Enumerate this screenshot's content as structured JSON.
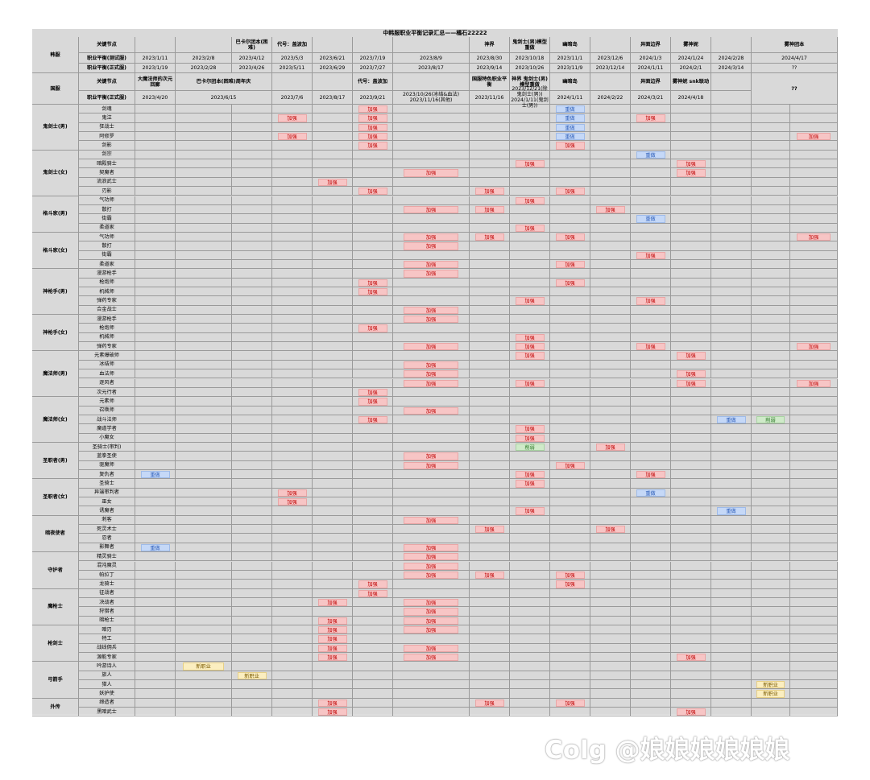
{
  "sheet_title": "中韩服职业平衡记录汇总——橘石22222",
  "kr": {
    "region": "韩服",
    "label_event": "关键节点",
    "label_test": "职业平衡(测试服)",
    "label_live": "职业平衡(正式服)",
    "events": [
      "",
      "",
      "巴卡尔团本(困难)",
      "代号：盖波加",
      "",
      "",
      "",
      "",
      "神界",
      "鬼剑士(男)模型重做",
      "幽暗岛",
      "",
      "异面边界",
      "雾神妮",
      "",
      "雾神团本"
    ],
    "test": [
      "2023/1/11",
      "2023/2/8",
      "2023/4/12",
      "2023/5/3",
      "2023/6/21",
      "2023/7/19",
      "2023/8/9",
      "",
      "2023/8/30",
      "2023/10/18",
      "2023/11/1",
      "2023/12/6",
      "2024/1/3",
      "2024/1/24",
      "2024/2/28",
      "2024/4/17"
    ],
    "live": [
      "2023/1/19",
      "2023/2/28",
      "2023/4/26",
      "2023/5/11",
      "2023/6/29",
      "2023/7/27",
      "2023/8/17",
      "",
      "2023/9/14",
      "2023/10/26",
      "2023/11/9",
      "2023/12/14",
      "2024/1/11",
      "2024/2/1",
      "2024/3/14",
      "??"
    ]
  },
  "cn": {
    "region": "国服",
    "label_event": "关键节点",
    "label_live": "职业平衡(正式服)",
    "events": [
      "大魔法师的次元回廊",
      "巴卡尔团本(困难)周年庆",
      "",
      "",
      "代号：盖波加",
      "",
      "国服特色职业平衡",
      "神界\n鬼剑士(男)模型重做",
      "幽暗岛",
      "",
      "异面边界",
      "雾神妮\nsnk联动",
      "",
      ""
    ],
    "live": [
      "2023/4/20",
      "2023/6/15",
      "2023/7/6",
      "2023/8/17",
      "2023/9/21",
      "2023/10/26(冰结&血法)\n2023/11/16(其他)",
      "2023/11/16",
      "2023/12/21(除鬼剑士(男))\n2024/1/11(鬼剑士(男))",
      "2024/1/11",
      "2024/2/22",
      "2024/3/21",
      "2024/4/18",
      "",
      "??"
    ]
  },
  "tag_labels": {
    "buff": "加强",
    "rework": "重做",
    "nerf": "削弱",
    "new": "新职业"
  },
  "colors": {
    "buff_bg": "#f7c5c5",
    "buff_text": "#c00000",
    "rework_bg": "#c5d8f7",
    "nerf_bg": "#cfeac9",
    "new_bg": "#fbeec0",
    "sheet_bg": "#d9d9d9"
  },
  "groups": [
    {
      "name": "鬼剑士(男)",
      "classes": [
        {
          "name": "剑魂",
          "marks": [
            [
              5,
              "buff"
            ],
            [
              9,
              "rework"
            ]
          ]
        },
        {
          "name": "鬼泣",
          "marks": [
            [
              3,
              "buff"
            ],
            [
              5,
              "buff"
            ],
            [
              9,
              "rework"
            ],
            [
              11,
              "buff"
            ]
          ]
        },
        {
          "name": "狂战士",
          "marks": [
            [
              5,
              "buff"
            ],
            [
              9,
              "rework"
            ]
          ]
        },
        {
          "name": "阿修罗",
          "marks": [
            [
              3,
              "buff"
            ],
            [
              5,
              "buff"
            ],
            [
              9,
              "rework"
            ],
            [
              15,
              "buff"
            ]
          ]
        },
        {
          "name": "剑影",
          "marks": [
            [
              5,
              "buff"
            ],
            [
              9,
              "buff"
            ]
          ]
        }
      ]
    },
    {
      "name": "鬼剑士(女)",
      "classes": [
        {
          "name": "剑宗",
          "marks": [
            [
              11,
              "rework"
            ]
          ]
        },
        {
          "name": "暗殿骑士",
          "marks": [
            [
              8,
              "buff"
            ],
            [
              12,
              "buff"
            ]
          ]
        },
        {
          "name": "契魔者",
          "marks": [
            [
              6,
              "buff"
            ],
            [
              12,
              "buff"
            ]
          ]
        },
        {
          "name": "流浪武士",
          "marks": [
            [
              4,
              "buff"
            ]
          ]
        },
        {
          "name": "刃影",
          "marks": [
            [
              5,
              "buff"
            ],
            [
              7,
              "buff"
            ],
            [
              9,
              "buff"
            ]
          ]
        }
      ]
    },
    {
      "name": "格斗家(男)",
      "classes": [
        {
          "name": "气功师",
          "marks": [
            [
              8,
              "buff"
            ]
          ]
        },
        {
          "name": "散打",
          "marks": [
            [
              6,
              "buff"
            ],
            [
              7,
              "buff"
            ],
            [
              10,
              "buff"
            ]
          ]
        },
        {
          "name": "街霸",
          "marks": [
            [
              11,
              "rework"
            ]
          ]
        },
        {
          "name": "柔道家",
          "marks": [
            [
              8,
              "buff"
            ]
          ]
        }
      ]
    },
    {
      "name": "格斗家(女)",
      "classes": [
        {
          "name": "气功师",
          "marks": [
            [
              6,
              "buff"
            ],
            [
              7,
              "buff"
            ],
            [
              9,
              "buff"
            ],
            [
              15,
              "buff"
            ]
          ]
        },
        {
          "name": "散打",
          "marks": [
            [
              6,
              "buff"
            ]
          ]
        },
        {
          "name": "街霸",
          "marks": [
            [
              11,
              "buff"
            ]
          ]
        },
        {
          "name": "柔道家",
          "marks": [
            [
              6,
              "buff"
            ],
            [
              9,
              "buff"
            ]
          ]
        }
      ]
    },
    {
      "name": "神枪手(男)",
      "classes": [
        {
          "name": "漫游枪手",
          "marks": [
            [
              6,
              "buff"
            ]
          ]
        },
        {
          "name": "枪炮师",
          "marks": [
            [
              5,
              "buff"
            ],
            [
              9,
              "buff"
            ]
          ]
        },
        {
          "name": "机械师",
          "marks": [
            [
              5,
              "buff"
            ]
          ]
        },
        {
          "name": "弹药专家",
          "marks": [
            [
              8,
              "buff"
            ],
            [
              11,
              "buff"
            ]
          ]
        },
        {
          "name": "合金战士",
          "marks": [
            [
              6,
              "buff"
            ]
          ]
        }
      ]
    },
    {
      "name": "神枪手(女)",
      "classes": [
        {
          "name": "漫游枪手",
          "marks": [
            [
              6,
              "buff"
            ]
          ]
        },
        {
          "name": "枪炮师",
          "marks": [
            [
              5,
              "buff"
            ]
          ]
        },
        {
          "name": "机械师",
          "marks": [
            [
              8,
              "buff"
            ]
          ]
        },
        {
          "name": "弹药专家",
          "marks": [
            [
              6,
              "buff"
            ],
            [
              8,
              "buff"
            ],
            [
              11,
              "buff"
            ],
            [
              15,
              "buff"
            ]
          ]
        }
      ]
    },
    {
      "name": "魔法师(男)",
      "classes": [
        {
          "name": "元素爆破师",
          "marks": [
            [
              8,
              "buff"
            ],
            [
              12,
              "buff"
            ]
          ]
        },
        {
          "name": "冰结师",
          "marks": [
            [
              6,
              "buff"
            ]
          ]
        },
        {
          "name": "血法师",
          "marks": [
            [
              6,
              "buff"
            ],
            [
              12,
              "buff"
            ]
          ]
        },
        {
          "name": "逐风者",
          "marks": [
            [
              6,
              "buff"
            ],
            [
              8,
              "buff"
            ],
            [
              12,
              "buff"
            ],
            [
              15,
              "buff"
            ]
          ]
        },
        {
          "name": "次元行者",
          "marks": [
            [
              5,
              "buff"
            ]
          ]
        }
      ]
    },
    {
      "name": "魔法师(女)",
      "classes": [
        {
          "name": "元素师",
          "marks": [
            [
              5,
              "buff"
            ]
          ]
        },
        {
          "name": "召唤师",
          "marks": [
            [
              6,
              "buff"
            ]
          ]
        },
        {
          "name": "战斗法师",
          "marks": [
            [
              5,
              "buff"
            ],
            [
              13,
              "rework"
            ],
            [
              14,
              "nerf"
            ]
          ]
        },
        {
          "name": "魔道学者",
          "marks": [
            [
              8,
              "buff"
            ]
          ]
        },
        {
          "name": "小魔女",
          "marks": [
            [
              8,
              "buff"
            ]
          ]
        }
      ]
    },
    {
      "name": "圣职者(男)",
      "classes": [
        {
          "name": "圣骑士(审判)",
          "marks": [
            [
              8,
              "nerf"
            ],
            [
              10,
              "buff"
            ]
          ]
        },
        {
          "name": "蓝拳圣使",
          "marks": [
            [
              6,
              "buff"
            ]
          ]
        },
        {
          "name": "驱魔师",
          "marks": [
            [
              6,
              "buff"
            ],
            [
              9,
              "buff"
            ]
          ]
        },
        {
          "name": "复仇者",
          "marks": [
            [
              0,
              "rework"
            ],
            [
              8,
              "buff"
            ],
            [
              11,
              "buff"
            ]
          ]
        }
      ]
    },
    {
      "name": "圣职者(女)",
      "classes": [
        {
          "name": "圣骑士",
          "marks": [
            [
              8,
              "buff"
            ]
          ]
        },
        {
          "name": "异端审判者",
          "marks": [
            [
              3,
              "buff"
            ],
            [
              11,
              "rework"
            ]
          ]
        },
        {
          "name": "巫女",
          "marks": [
            [
              3,
              "buff"
            ]
          ]
        },
        {
          "name": "诱魔者",
          "marks": [
            [
              8,
              "buff"
            ],
            [
              13,
              "rework"
            ]
          ]
        }
      ]
    },
    {
      "name": "暗夜使者",
      "classes": [
        {
          "name": "刺客",
          "marks": [
            [
              6,
              "buff"
            ]
          ]
        },
        {
          "name": "死灵术士",
          "marks": [
            [
              7,
              "buff"
            ],
            [
              10,
              "buff"
            ]
          ]
        },
        {
          "name": "忍者",
          "marks": []
        },
        {
          "name": "影舞者",
          "marks": [
            [
              0,
              "rework"
            ],
            [
              6,
              "buff"
            ]
          ]
        }
      ]
    },
    {
      "name": "守护者",
      "classes": [
        {
          "name": "精灵骑士",
          "marks": [
            [
              6,
              "buff"
            ]
          ]
        },
        {
          "name": "混沌魔灵",
          "marks": [
            [
              6,
              "buff"
            ]
          ]
        },
        {
          "name": "帕拉丁",
          "marks": [
            [
              6,
              "buff"
            ],
            [
              7,
              "buff"
            ],
            [
              9,
              "buff"
            ]
          ]
        },
        {
          "name": "龙骑士",
          "marks": [
            [
              5,
              "buff"
            ],
            [
              9,
              "buff"
            ]
          ]
        }
      ]
    },
    {
      "name": "魔枪士",
      "classes": [
        {
          "name": "征战者",
          "marks": [
            [
              5,
              "buff"
            ]
          ]
        },
        {
          "name": "决战者",
          "marks": [
            [
              4,
              "buff"
            ],
            [
              6,
              "buff"
            ]
          ]
        },
        {
          "name": "狩猎者",
          "marks": [
            [
              6,
              "buff"
            ]
          ]
        },
        {
          "name": "暗枪士",
          "marks": [
            [
              4,
              "buff"
            ],
            [
              6,
              "buff"
            ]
          ]
        }
      ]
    },
    {
      "name": "枪剑士",
      "classes": [
        {
          "name": "暗刃",
          "marks": [
            [
              4,
              "buff"
            ],
            [
              6,
              "buff"
            ]
          ]
        },
        {
          "name": "特工",
          "marks": [
            [
              4,
              "buff"
            ]
          ]
        },
        {
          "name": "战线佣兵",
          "marks": [
            [
              4,
              "buff"
            ],
            [
              6,
              "buff"
            ]
          ]
        },
        {
          "name": "源能专家",
          "marks": [
            [
              4,
              "buff"
            ],
            [
              6,
              "buff"
            ],
            [
              12,
              "buff"
            ]
          ]
        }
      ]
    },
    {
      "name": "弓箭手",
      "classes": [
        {
          "name": "吟游诗人",
          "marks": [
            [
              1,
              "new"
            ]
          ]
        },
        {
          "name": "旅人",
          "marks": [
            [
              2,
              "new"
            ]
          ]
        },
        {
          "name": "猎人",
          "marks": [
            [
              14,
              "new"
            ]
          ]
        },
        {
          "name": "妖护使",
          "marks": [
            [
              14,
              "new"
            ]
          ]
        }
      ]
    },
    {
      "name": "外传",
      "classes": [
        {
          "name": "缔造者",
          "marks": [
            [
              4,
              "buff"
            ],
            [
              7,
              "buff"
            ],
            [
              9,
              "buff"
            ]
          ]
        },
        {
          "name": "黑暗武士",
          "marks": [
            [
              4,
              "buff"
            ],
            [
              12,
              "buff"
            ]
          ]
        }
      ]
    }
  ],
  "watermark": "Colg @娘娘娘娘娘娘"
}
